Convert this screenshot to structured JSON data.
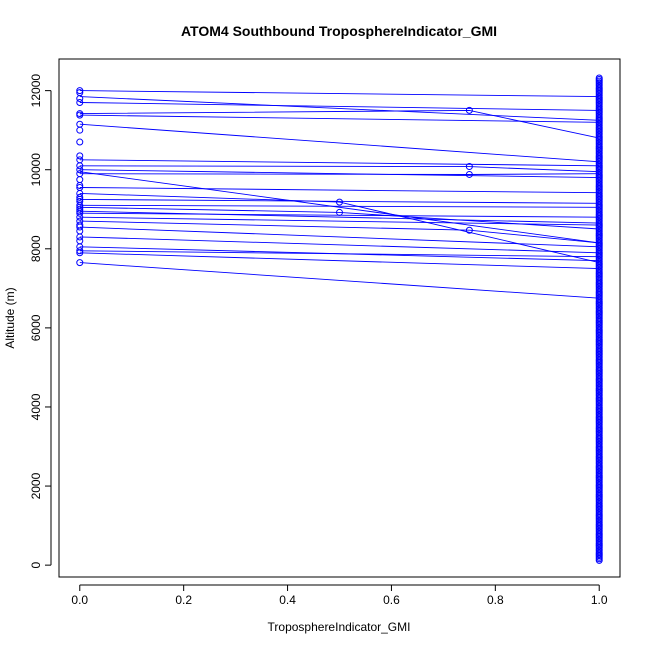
{
  "chart_data": {
    "type": "line",
    "title": "ATOM4 Southbound TroposphereIndicator_GMI",
    "xlabel": "TroposphereIndicator_GMI",
    "ylabel": "Altitude (m)",
    "xlim": [
      -0.04,
      1.04
    ],
    "ylim": [
      -300,
      12800
    ],
    "x_ticks": [
      0,
      0.2,
      0.4,
      0.6,
      0.8,
      1
    ],
    "x_tick_labels": [
      "0.0",
      "0.2",
      "0.4",
      "0.6",
      "0.8",
      "1.0"
    ],
    "y_ticks": [
      0,
      2000,
      4000,
      6000,
      8000,
      10000,
      12000
    ],
    "y_tick_labels": [
      "0",
      "2000",
      "4000",
      "6000",
      "8000",
      "10000",
      "12000"
    ],
    "grid": false,
    "legend": "none",
    "series_color": "#0000ff",
    "marker": "open-circle",
    "segments": [
      [
        [
          0,
          12000
        ],
        [
          1,
          11850
        ]
      ],
      [
        [
          0,
          11850
        ],
        [
          1,
          11250
        ]
      ],
      [
        [
          0,
          11700
        ],
        [
          1,
          11500
        ]
      ],
      [
        [
          0,
          11420
        ],
        [
          0.75,
          11500
        ],
        [
          1,
          10800
        ]
      ],
      [
        [
          0,
          11380
        ],
        [
          1,
          11200
        ]
      ],
      [
        [
          0,
          11150
        ],
        [
          1,
          10200
        ]
      ],
      [
        [
          0,
          10250
        ],
        [
          1,
          10100
        ]
      ],
      [
        [
          0,
          10100
        ],
        [
          0.75,
          10080
        ],
        [
          1,
          9950
        ]
      ],
      [
        [
          0,
          10000
        ],
        [
          1,
          9800
        ]
      ],
      [
        [
          0,
          9900
        ],
        [
          0.75,
          9880
        ],
        [
          1,
          9900
        ]
      ],
      [
        [
          0,
          9550
        ],
        [
          1,
          9420
        ]
      ],
      [
        [
          0,
          9400
        ],
        [
          0.5,
          9180
        ],
        [
          1,
          7650
        ]
      ],
      [
        [
          0,
          9250
        ],
        [
          1,
          9150
        ]
      ],
      [
        [
          0,
          9100
        ],
        [
          1,
          9050
        ]
      ],
      [
        [
          0,
          9050
        ],
        [
          0.5,
          8920
        ],
        [
          1,
          8500
        ]
      ],
      [
        [
          0,
          8950
        ],
        [
          1,
          8650
        ]
      ],
      [
        [
          0,
          8900
        ],
        [
          1,
          8800
        ]
      ],
      [
        [
          0,
          8800
        ],
        [
          1,
          8600
        ]
      ],
      [
        [
          0,
          8700
        ],
        [
          0.75,
          8470
        ],
        [
          1,
          8150
        ]
      ],
      [
        [
          0,
          8550
        ],
        [
          1,
          8050
        ]
      ],
      [
        [
          0,
          8300
        ],
        [
          1,
          7900
        ]
      ],
      [
        [
          0,
          8050
        ],
        [
          1,
          7700
        ]
      ],
      [
        [
          0,
          7950
        ],
        [
          1,
          7800
        ]
      ],
      [
        [
          0,
          7900
        ],
        [
          1,
          7500
        ]
      ],
      [
        [
          0,
          7650
        ],
        [
          1,
          6750
        ]
      ],
      [
        [
          0,
          9950
        ],
        [
          1,
          8150
        ]
      ]
    ],
    "points_x0": [
      12000,
      11950,
      11800,
      11700,
      11420,
      11380,
      11150,
      11000,
      10700,
      10350,
      10250,
      10100,
      10000,
      9900,
      9750,
      9600,
      9550,
      9400,
      9300,
      9250,
      9200,
      9100,
      9050,
      9000,
      8950,
      8900,
      8800,
      8700,
      8600,
      8550,
      8450,
      8300,
      8200,
      8050,
      7950,
      7900,
      7650
    ],
    "points_mid": [
      [
        0.5,
        9180
      ],
      [
        0.5,
        8920
      ],
      [
        0.75,
        11500
      ],
      [
        0.75,
        10080
      ],
      [
        0.75,
        9880
      ],
      [
        0.75,
        8470
      ]
    ],
    "points_x1_dense_range": [
      120,
      12350
    ]
  }
}
